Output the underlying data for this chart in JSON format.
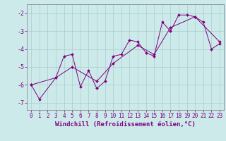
{
  "xlabel": "Windchill (Refroidissement éolien,°C)",
  "bg_color": "#cdeaea",
  "line_color": "#800080",
  "grid_color": "#aacccc",
  "xlim": [
    -0.5,
    23.5
  ],
  "ylim": [
    -7.4,
    -1.5
  ],
  "yticks": [
    -7,
    -6,
    -5,
    -4,
    -3,
    -2
  ],
  "xticks": [
    0,
    1,
    2,
    3,
    4,
    5,
    6,
    7,
    8,
    9,
    10,
    11,
    12,
    13,
    14,
    15,
    16,
    17,
    18,
    19,
    20,
    21,
    22,
    23
  ],
  "series1_x": [
    0,
    1,
    3,
    4,
    5,
    6,
    7,
    8,
    9,
    10,
    11,
    12,
    13,
    14,
    15,
    16,
    17,
    18,
    19,
    20,
    21,
    22,
    23
  ],
  "series1_y": [
    -6.0,
    -6.8,
    -5.6,
    -4.4,
    -4.3,
    -6.1,
    -5.2,
    -6.2,
    -5.8,
    -4.4,
    -4.3,
    -3.5,
    -3.6,
    -4.2,
    -4.4,
    -2.5,
    -3.0,
    -2.1,
    -2.1,
    -2.2,
    -2.5,
    -4.0,
    -3.7
  ],
  "series2_x": [
    0,
    3,
    5,
    8,
    10,
    13,
    15,
    17,
    20,
    23
  ],
  "series2_y": [
    -6.0,
    -5.6,
    -5.0,
    -5.8,
    -4.8,
    -3.8,
    -4.3,
    -2.8,
    -2.2,
    -3.6
  ],
  "tickfont_size": 5.5,
  "labelfont_size": 6.5
}
